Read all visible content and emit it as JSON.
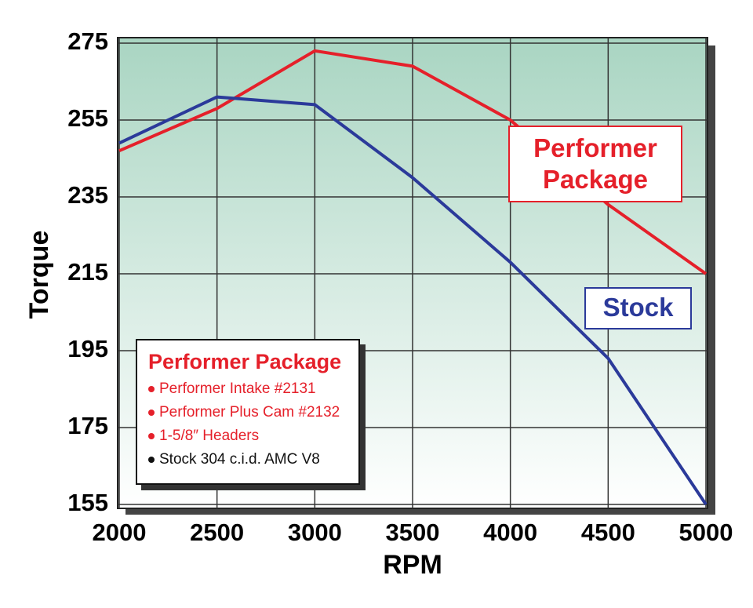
{
  "chart_data": {
    "type": "line",
    "x_label": "RPM",
    "y_label": "Torque",
    "x": [
      2000,
      2500,
      3000,
      3500,
      4000,
      4500,
      5000
    ],
    "series": [
      {
        "name": "Performer Package",
        "color": "#e5202a",
        "values": [
          247,
          258,
          273,
          269,
          255,
          233,
          215
        ]
      },
      {
        "name": "Stock",
        "color": "#2b3a9a",
        "values": [
          249,
          261,
          259,
          240,
          218,
          193,
          155
        ]
      }
    ],
    "xlim": [
      2000,
      5000
    ],
    "xticks": [
      2000,
      2500,
      3000,
      3500,
      4000,
      4500,
      5000
    ],
    "ylim": [
      155,
      275
    ],
    "yticks": [
      155,
      175,
      195,
      215,
      235,
      255,
      275
    ],
    "grid": true,
    "legend": {
      "title": "Performer Package",
      "title_color": "#e5202a",
      "items": [
        {
          "text": "Performer Intake #2131",
          "color": "#e5202a"
        },
        {
          "text": "Performer Plus Cam #2132",
          "color": "#e5202a"
        },
        {
          "text": "1-5/8″ Headers",
          "color": "#e5202a"
        },
        {
          "text": "Stock 304 c.i.d. AMC V8",
          "color": "#111111"
        }
      ]
    }
  }
}
